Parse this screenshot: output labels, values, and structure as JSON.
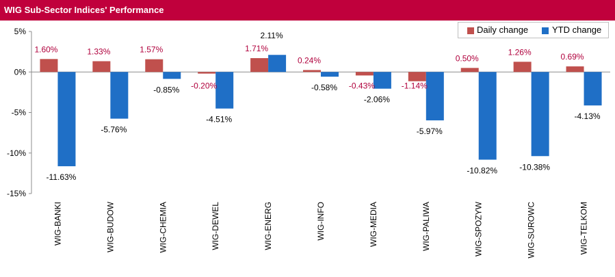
{
  "header": {
    "title": "WIG Sub-Sector Indices' Performance"
  },
  "colors": {
    "daily": "#c0504d",
    "ytd": "#1f6fc6",
    "header_bg": "#c0003c",
    "daily_label": "#b0003c",
    "ytd_label": "#000000"
  },
  "chart_data": {
    "type": "bar",
    "title": "WIG Sub-Sector Indices' Performance",
    "categories": [
      "WIG-BANKI",
      "WIG-BUDOW",
      "WIG-CHEMIA",
      "WIG-DEWEL",
      "WIG-ENERG",
      "WIG-INFO",
      "WIG-MEDIA",
      "WIG-PALIWA",
      "WIG-SPOZYW",
      "WIG-SUROWC",
      "WIG-TELKOM"
    ],
    "series": [
      {
        "name": "Daily change",
        "values": [
          1.6,
          1.33,
          1.57,
          -0.2,
          1.71,
          0.24,
          -0.43,
          -1.14,
          0.5,
          1.26,
          0.69
        ],
        "labels": [
          "1.60%",
          "1.33%",
          "1.57%",
          "-0.20%",
          "1.71%",
          "0.24%",
          "-0.43%",
          "-1.14%",
          "0.50%",
          "1.26%",
          "0.69%"
        ]
      },
      {
        "name": "YTD change",
        "values": [
          -11.63,
          -5.76,
          -0.85,
          -4.51,
          2.11,
          -0.58,
          -2.06,
          -5.97,
          -10.82,
          -10.38,
          -4.13
        ],
        "labels": [
          "-11.63%",
          "-5.76%",
          "-0.85%",
          "-4.51%",
          "2.11%",
          "-0.58%",
          "-2.06%",
          "-5.97%",
          "-10.82%",
          "-10.38%",
          "-4.13%"
        ]
      }
    ],
    "ylim": [
      -15,
      5
    ],
    "yticks": [
      5,
      0,
      -5,
      -10,
      -15
    ],
    "ytick_labels": [
      "5%",
      "0%",
      "-5%",
      "-10%",
      "-15%"
    ],
    "legend_position": "top-right",
    "grid": false
  }
}
